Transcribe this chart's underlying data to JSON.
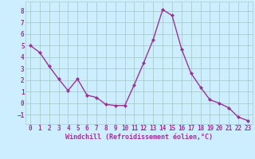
{
  "x": [
    0,
    1,
    2,
    3,
    4,
    5,
    6,
    7,
    8,
    9,
    10,
    11,
    12,
    13,
    14,
    15,
    16,
    17,
    18,
    19,
    20,
    21,
    22,
    23
  ],
  "y": [
    5.0,
    4.4,
    3.2,
    2.1,
    1.1,
    2.1,
    0.7,
    0.5,
    -0.1,
    -0.2,
    -0.2,
    1.6,
    3.5,
    5.5,
    8.1,
    7.6,
    4.7,
    2.6,
    1.4,
    0.3,
    0.0,
    -0.4,
    -1.2,
    -1.5
  ],
  "line_color": "#993399",
  "marker": "D",
  "marker_size": 2.0,
  "line_width": 1.0,
  "bg_color": "#cceeff",
  "grid_color": "#aacccc",
  "xlabel": "Windchill (Refroidissement éolien,°C)",
  "xlabel_color": "#993399",
  "tick_color": "#993399",
  "xlim": [
    -0.5,
    23.5
  ],
  "ylim": [
    -1.8,
    8.8
  ],
  "yticks": [
    -1,
    0,
    1,
    2,
    3,
    4,
    5,
    6,
    7,
    8
  ],
  "xticks": [
    0,
    1,
    2,
    3,
    4,
    5,
    6,
    7,
    8,
    9,
    10,
    11,
    12,
    13,
    14,
    15,
    16,
    17,
    18,
    19,
    20,
    21,
    22,
    23
  ],
  "tick_fontsize": 5.5,
  "xlabel_fontsize": 6.0
}
